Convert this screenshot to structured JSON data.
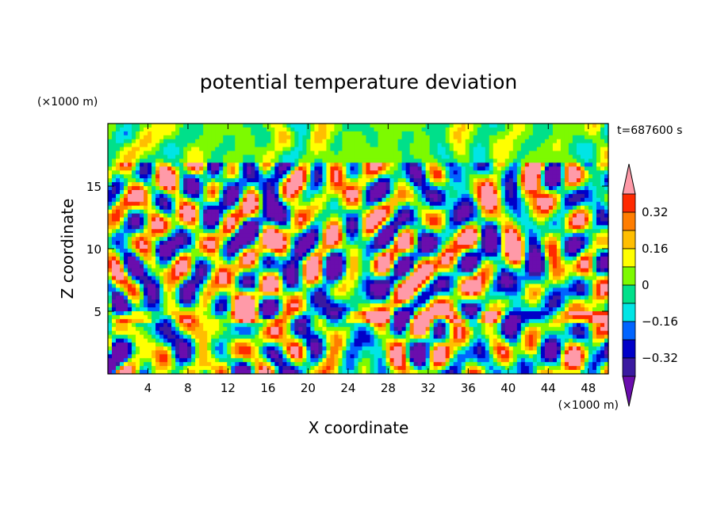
{
  "chart_data": {
    "type": "heatmap",
    "title": "potential temperature deviation",
    "xlabel": "X coordinate",
    "ylabel": "Z coordinate",
    "x_unit": "(×1000 m)",
    "y_unit": "(×1000 m)",
    "time_label": "t=687600 s",
    "xlim": [
      0,
      50
    ],
    "ylim": [
      0,
      20
    ],
    "x_ticks": [
      4,
      8,
      12,
      16,
      20,
      24,
      28,
      32,
      36,
      40,
      44,
      48
    ],
    "y_ticks": [
      5,
      10,
      15
    ],
    "colorbar": {
      "levels": [
        -0.48,
        -0.4,
        -0.32,
        -0.24,
        -0.16,
        -0.08,
        0,
        0.08,
        0.16,
        0.24,
        0.32,
        0.4,
        0.48
      ],
      "tick_labels": [
        "0.32",
        "0.16",
        "0",
        "−0.16",
        "−0.32"
      ],
      "tick_values": [
        0.32,
        0.16,
        0,
        -0.16,
        -0.32
      ],
      "colors": [
        "#6a0dad",
        "#3a1aa0",
        "#0000c8",
        "#0064ff",
        "#00e5e5",
        "#00e08a",
        "#7dfa00",
        "#ffff00",
        "#ffbe00",
        "#ff7d00",
        "#ff2a00",
        "#ff9aa8"
      ]
    },
    "field_description": "stratified field; strong perturbations in mid-levels 5-17 km, pink band near 4.5 km, calmer green layer above 17 km"
  }
}
